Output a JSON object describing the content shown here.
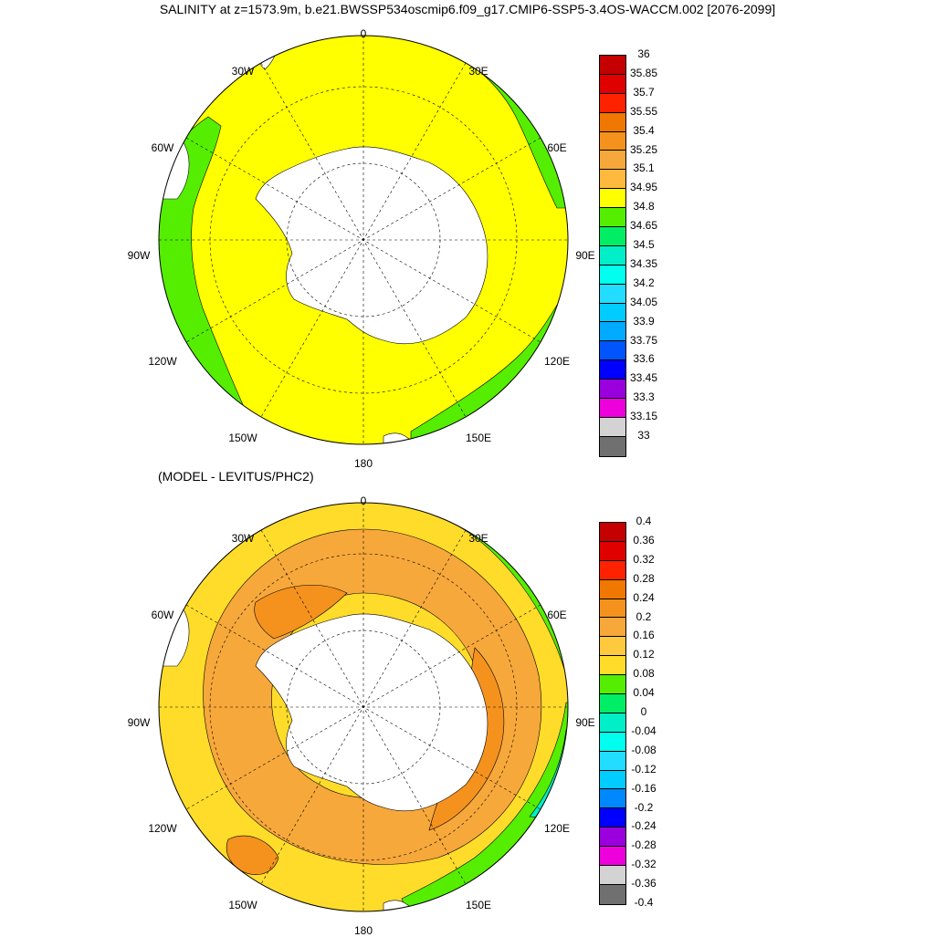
{
  "title": "SALINITY at z=1573.9m, b.e21.BWSSP534oscmip6.f09_g17.CMIP6-SSP5-3.4OS-WACCM.002 [2076-2099]",
  "subtitle": "(MODEL - LEVITUS/PHC2)",
  "lon_labels": [
    "0",
    "30E",
    "60E",
    "90E",
    "120E",
    "150E",
    "180",
    "150W",
    "120W",
    "90W",
    "60W",
    "30W"
  ],
  "colorbar_top": {
    "labels": [
      "36",
      "35.85",
      "35.7",
      "35.55",
      "35.4",
      "35.25",
      "35.1",
      "34.95",
      "34.8",
      "34.65",
      "34.5",
      "34.35",
      "34.2",
      "34.05",
      "33.9",
      "33.75",
      "33.6",
      "33.45",
      "33.3",
      "33.15",
      "33"
    ],
    "colors": [
      "#c40000",
      "#e00000",
      "#ff2200",
      "#f07800",
      "#f5921d",
      "#f7a83b",
      "#ffb93f",
      "#ffff00",
      "#55ee00",
      "#00ee66",
      "#00eec8",
      "#00ffee",
      "#22ddff",
      "#00ccff",
      "#00aaff",
      "#0055ff",
      "#0000ff",
      "#9900dd",
      "#ee00dd",
      "#d3d3d3",
      "#707070"
    ]
  },
  "colorbar_bottom": {
    "labels": [
      "0.4",
      "0.36",
      "0.32",
      "0.28",
      "0.24",
      "0.2",
      "0.16",
      "0.12",
      "0.08",
      "0.04",
      "0",
      "-0.04",
      "-0.08",
      "-0.12",
      "-0.16",
      "-0.2",
      "-0.24",
      "-0.28",
      "-0.32",
      "-0.36",
      "-0.4"
    ],
    "colors": [
      "#c40000",
      "#e00000",
      "#ff2200",
      "#f07800",
      "#f5921d",
      "#f7a83b",
      "#ffc93f",
      "#ffdc2a",
      "#55ee00",
      "#00ee66",
      "#00eec8",
      "#00ffee",
      "#22ddff",
      "#00ccff",
      "#0088ff",
      "#0000ff",
      "#9900dd",
      "#ee00dd",
      "#d3d3d3",
      "#707070"
    ]
  }
}
